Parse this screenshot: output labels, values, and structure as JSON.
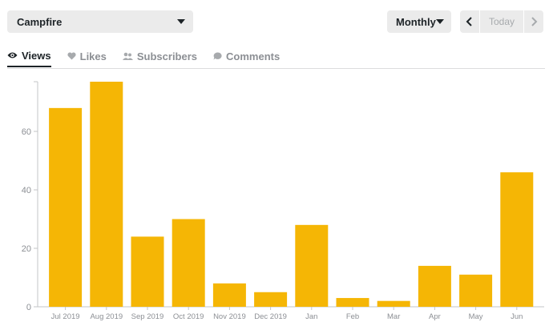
{
  "site_select": {
    "label": "Campfire",
    "icon": "chevron-down-icon"
  },
  "period_select": {
    "label": "Monthly",
    "icon": "chevron-down-icon"
  },
  "date_nav": {
    "today_label": "Today",
    "prev_icon": "chevron-left-icon",
    "next_icon": "chevron-right-icon"
  },
  "tabs": [
    {
      "label": "Views",
      "icon": "eye-icon",
      "active": true
    },
    {
      "label": "Likes",
      "icon": "heart-icon",
      "active": false
    },
    {
      "label": "Subscribers",
      "icon": "people-icon",
      "active": false
    },
    {
      "label": "Comments",
      "icon": "comment-icon",
      "active": false
    }
  ],
  "colors": {
    "bar": "#f5b605",
    "accent": "#1d2327",
    "muted": "#8c8f94"
  },
  "chart_data": {
    "type": "bar",
    "categories": [
      "Jul 2019",
      "Aug 2019",
      "Sep 2019",
      "Oct 2019",
      "Nov 2019",
      "Dec 2019",
      "Jan",
      "Feb",
      "Mar",
      "Apr",
      "May",
      "Jun"
    ],
    "values": [
      68,
      77,
      24,
      30,
      8,
      5,
      28,
      3,
      2,
      14,
      11,
      46
    ],
    "ylim": [
      0,
      77
    ],
    "yticks": [
      0,
      20,
      40,
      60
    ],
    "grid": false,
    "title": "",
    "xlabel": "",
    "ylabel": ""
  }
}
